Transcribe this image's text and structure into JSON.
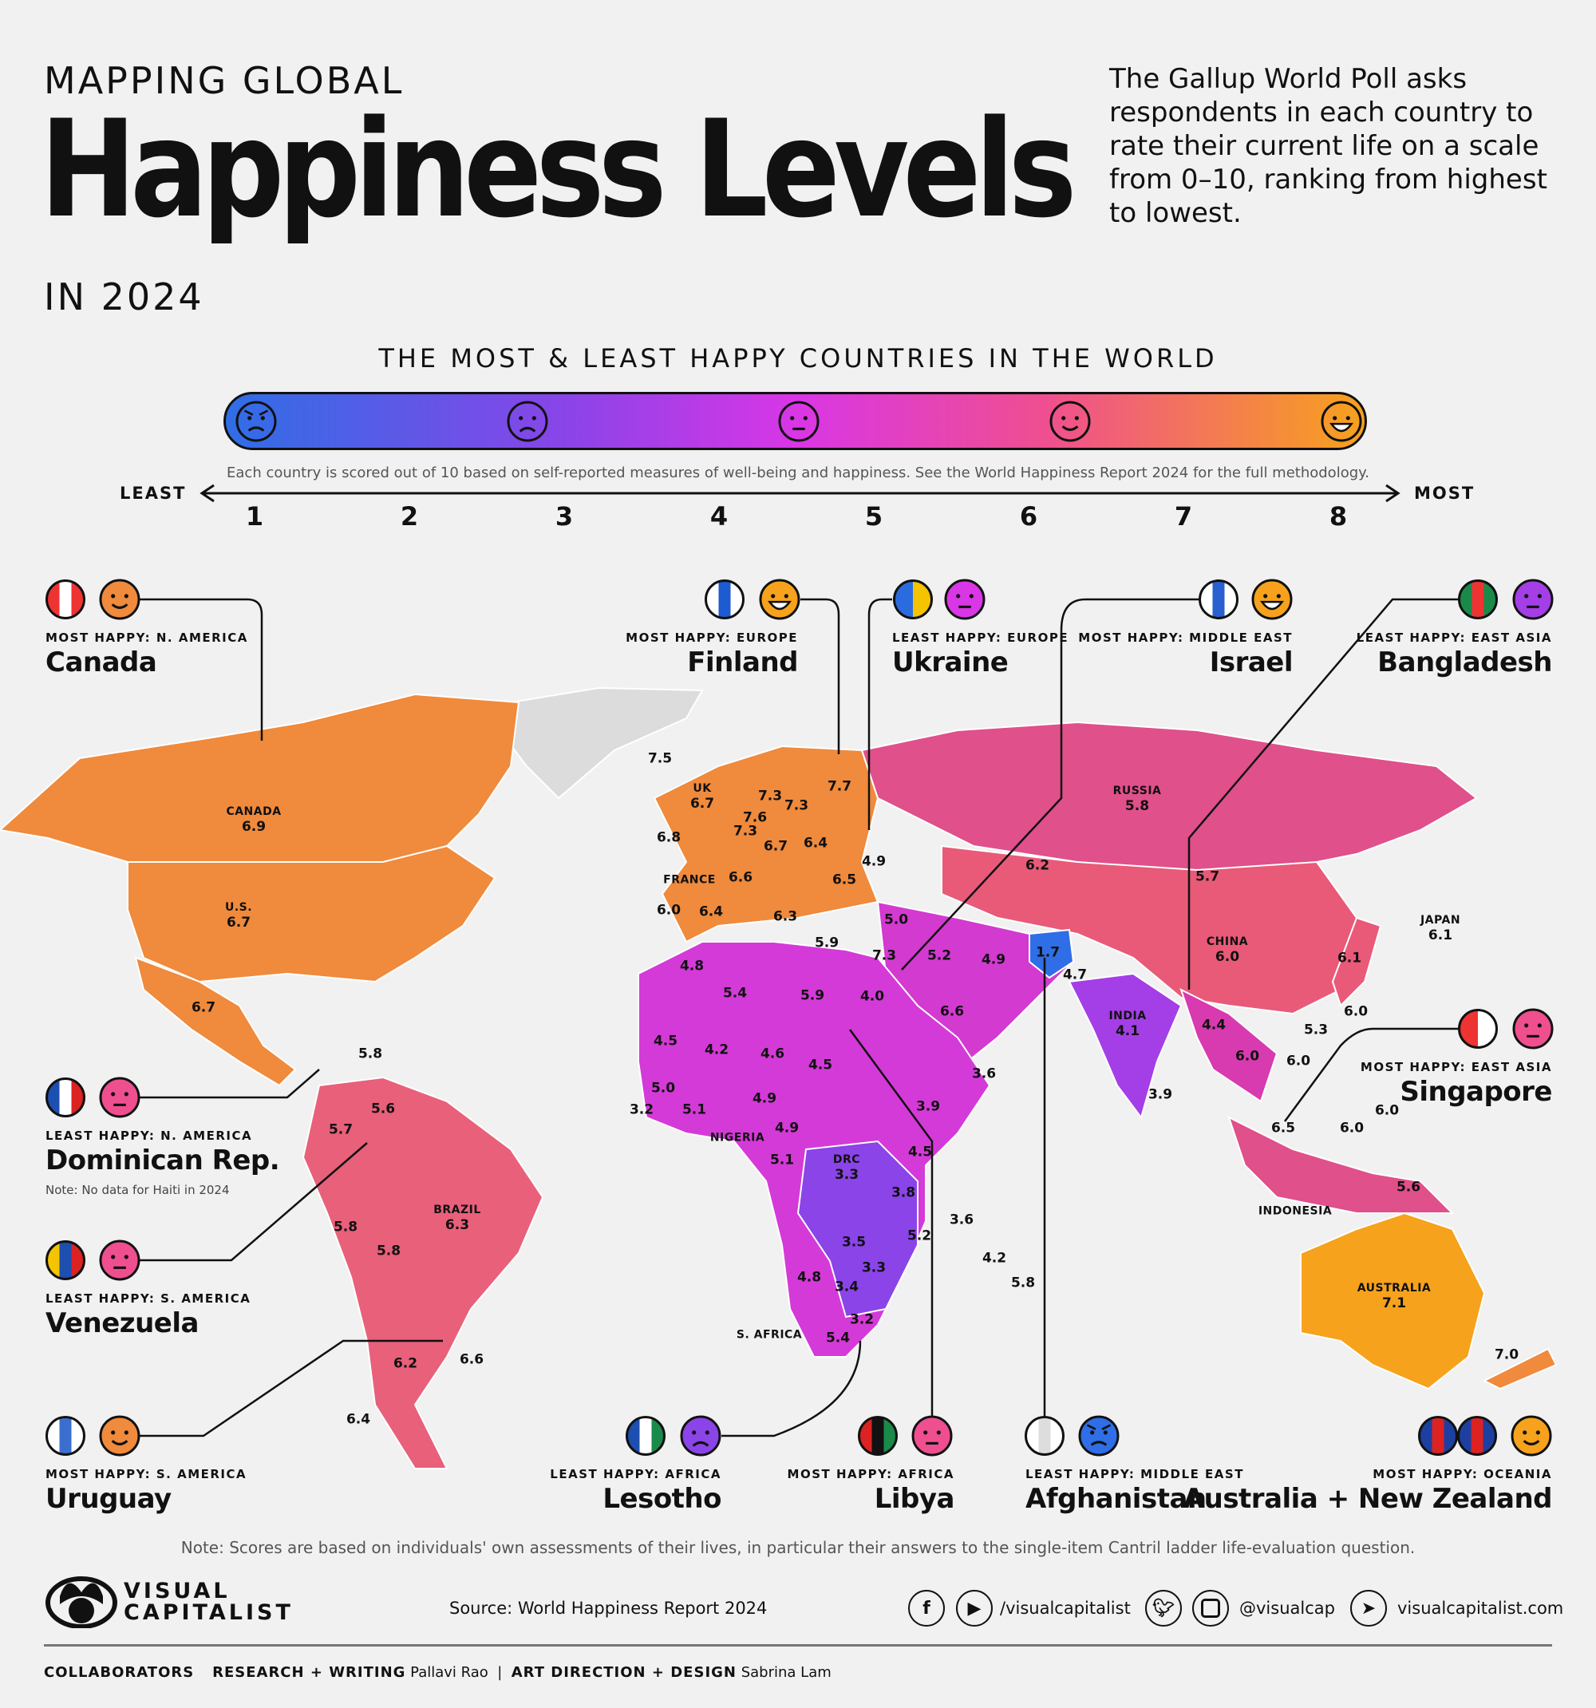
{
  "header": {
    "pretitle": "MAPPING GLOBAL",
    "title": "Happiness Levels",
    "year": "IN 2024",
    "description": "The Gallup World Poll asks respondents in each country to rate their current life on a scale from 0–10, ranking from highest to lowest."
  },
  "scale": {
    "subtitle": "THE MOST & LEAST HAPPY COUNTRIES IN THE WORLD",
    "methodology": "Each country is scored out of 10 based on self-reported measures of well-being and happiness. See the World Happiness Report 2024 for the full methodology.",
    "least_label": "LEAST",
    "most_label": "MOST",
    "ticks": [
      "1",
      "2",
      "3",
      "4",
      "5",
      "6",
      "7",
      "8"
    ],
    "gradient_colors": [
      "#2f6ee6",
      "#8a44e8",
      "#d936e6",
      "#ef4f8f",
      "#f7a21c"
    ],
    "faces": [
      "angry",
      "sad",
      "neutral",
      "smile",
      "grin"
    ]
  },
  "callouts": [
    {
      "label": "MOST HAPPY: N. AMERICA",
      "name": "Canada",
      "face": "smile",
      "face_color": "#f08a3c",
      "flag": [
        "#e33",
        "#fff",
        "#e33"
      ]
    },
    {
      "label": "MOST HAPPY: EUROPE",
      "name": "Finland",
      "face": "grin",
      "face_color": "#f7a21c",
      "flag": [
        "#fff",
        "#1d5bd1",
        "#fff"
      ]
    },
    {
      "label": "LEAST HAPPY: EUROPE",
      "name": "Ukraine",
      "face": "neutral",
      "face_color": "#d936e6",
      "flag": [
        "#2a6ce0",
        "#f5c400"
      ]
    },
    {
      "label": "MOST HAPPY: MIDDLE EAST",
      "name": "Israel",
      "face": "grin",
      "face_color": "#f7a21c",
      "flag": [
        "#fff",
        "#2a5fd0",
        "#fff"
      ]
    },
    {
      "label": "LEAST HAPPY: EAST ASIA",
      "name": "Bangladesh",
      "face": "neutral",
      "face_color": "#a43ee6",
      "flag": [
        "#1a8a4a",
        "#e33",
        "#1a8a4a"
      ]
    },
    {
      "label": "MOST HAPPY: EAST ASIA",
      "name": "Singapore",
      "face": "neutral",
      "face_color": "#ef4f8f",
      "flag": [
        "#e33",
        "#fff"
      ]
    },
    {
      "label": "LEAST HAPPY: N. AMERICA",
      "name": "Dominican Rep.",
      "face": "neutral",
      "face_color": "#ef4f8f",
      "flag": [
        "#1d4fb0",
        "#fff",
        "#d22"
      ],
      "note": "Note: No data for Haiti in 2024"
    },
    {
      "label": "LEAST HAPPY: S. AMERICA",
      "name": "Venezuela",
      "face": "neutral",
      "face_color": "#ef4f8f",
      "flag": [
        "#f5c400",
        "#1d4fb0",
        "#d22"
      ]
    },
    {
      "label": "MOST HAPPY: S. AMERICA",
      "name": "Uruguay",
      "face": "smile",
      "face_color": "#f08a3c",
      "flag": [
        "#fff",
        "#3a6fd0",
        "#fff"
      ]
    },
    {
      "label": "LEAST HAPPY: AFRICA",
      "name": "Lesotho",
      "face": "sad",
      "face_color": "#8a44e8",
      "flag": [
        "#1d4fb0",
        "#fff",
        "#1a8a4a"
      ]
    },
    {
      "label": "MOST HAPPY: AFRICA",
      "name": "Libya",
      "face": "neutral",
      "face_color": "#ef4f8f",
      "flag": [
        "#d22",
        "#111",
        "#1a8a4a"
      ]
    },
    {
      "label": "LEAST HAPPY: MIDDLE EAST",
      "name": "Afghanistan",
      "face": "angry",
      "face_color": "#2f6ee6",
      "flag": [
        "#fff",
        "#ddd",
        "#fff"
      ]
    },
    {
      "label": "MOST HAPPY: OCEANIA",
      "name": "Australia + New Zealand",
      "face": "smile",
      "face_color": "#f7a21c",
      "flag": [
        "#1d3fa0",
        "#d22",
        "#1d3fa0"
      ]
    }
  ],
  "map_labels": [
    {
      "name": "CANADA",
      "value": "6.9"
    },
    {
      "name": "U.S.",
      "value": "6.7"
    },
    {
      "value": "6.7"
    },
    {
      "value": "5.8"
    },
    {
      "value": "5.6"
    },
    {
      "value": "5.7"
    },
    {
      "name": "BRAZIL",
      "value": "6.3"
    },
    {
      "value": "5.8"
    },
    {
      "value": "5.8"
    },
    {
      "value": "6.2"
    },
    {
      "value": "6.6"
    },
    {
      "value": "6.4"
    },
    {
      "value": "7.5"
    },
    {
      "name": "UK",
      "value": "6.7"
    },
    {
      "value": "6.8"
    },
    {
      "value": "7.3"
    },
    {
      "value": "7.7"
    },
    {
      "value": "7.3"
    },
    {
      "value": "7.6"
    },
    {
      "value": "7.3"
    },
    {
      "value": "6.7"
    },
    {
      "value": "6.4"
    },
    {
      "name": "FRANCE"
    },
    {
      "value": "6.6"
    },
    {
      "value": "6.5"
    },
    {
      "value": "4.9"
    },
    {
      "value": "6.0"
    },
    {
      "value": "6.4"
    },
    {
      "value": "6.3"
    },
    {
      "value": "5.0"
    },
    {
      "value": "5.9"
    },
    {
      "value": "7.3"
    },
    {
      "value": "5.2"
    },
    {
      "value": "4.9"
    },
    {
      "value": "1.7"
    },
    {
      "value": "4.7"
    },
    {
      "value": "6.2"
    },
    {
      "name": "RUSSIA",
      "value": "5.8"
    },
    {
      "value": "5.7"
    },
    {
      "name": "CHINA",
      "value": "6.0"
    },
    {
      "name": "JAPAN",
      "value": "6.1"
    },
    {
      "value": "6.1"
    },
    {
      "value": "6.0"
    },
    {
      "value": "5.3"
    },
    {
      "value": "4.8"
    },
    {
      "value": "5.4"
    },
    {
      "value": "5.9"
    },
    {
      "value": "4.0"
    },
    {
      "value": "6.6"
    },
    {
      "name": "INDIA",
      "value": "4.1"
    },
    {
      "value": "4.4"
    },
    {
      "value": "6.0"
    },
    {
      "value": "6.0"
    },
    {
      "value": "3.6"
    },
    {
      "value": "3.9"
    },
    {
      "value": "4.5"
    },
    {
      "value": "4.2"
    },
    {
      "value": "4.6"
    },
    {
      "value": "4.5"
    },
    {
      "value": "3.9"
    },
    {
      "value": "6.0"
    },
    {
      "value": "6.5"
    },
    {
      "value": "6.0"
    },
    {
      "value": "5.0"
    },
    {
      "value": "3.2"
    },
    {
      "value": "5.1"
    },
    {
      "value": "4.9"
    },
    {
      "value": "4.9"
    },
    {
      "name": "NIGERIA"
    },
    {
      "name": "DRC",
      "value": "3.3"
    },
    {
      "value": "4.5"
    },
    {
      "value": "5.1"
    },
    {
      "value": "3.8"
    },
    {
      "value": "3.6"
    },
    {
      "value": "5.2"
    },
    {
      "value": "3.5"
    },
    {
      "value": "4.2"
    },
    {
      "value": "3.3"
    },
    {
      "value": "4.8"
    },
    {
      "value": "3.4"
    },
    {
      "value": "5.8"
    },
    {
      "value": "3.2"
    },
    {
      "name": "S. AFRICA"
    },
    {
      "value": "5.4"
    },
    {
      "name": "INDONESIA"
    },
    {
      "value": "5.6"
    },
    {
      "name": "AUSTRALIA",
      "value": "7.1"
    },
    {
      "value": "7.0"
    }
  ],
  "map_colors": {
    "north_america": "#f08a3c",
    "usa": "#f08a3c",
    "mexico": "#f08a3c",
    "greenland": "#dcdcdc",
    "south_america": "#e8607a",
    "europe": "#f08a3c",
    "africa": "#d43ad8",
    "russia": "#e0508a",
    "asia": "#e85a78",
    "middle_east": "#d33ad0",
    "india": "#a43ee6",
    "se_asia": "#d83ab0",
    "indonesia": "#e0508a",
    "japan": "#e85a78",
    "australia": "#f7a21c",
    "new_zealand": "#f08a3c",
    "afghanistan": "#2f6ee6",
    "central_africa": "#8a44e8"
  },
  "footer": {
    "note": "Note: Scores are based on individuals' own assessments of their lives, in particular their answers to the single-item Cantril ladder life-evaluation question.",
    "brand_line1": "VISUAL",
    "brand_line2": "CAPITALIST",
    "source": "Source: World Happiness Report 2024",
    "social1": "/visualcapitalist",
    "social2": "@visualcap",
    "website": "visualcapitalist.com",
    "icons": [
      "facebook-icon",
      "youtube-icon",
      "twitter-icon",
      "instagram-icon",
      "cursor-icon"
    ],
    "collaborators_label": "COLLABORATORS",
    "research_label": "RESEARCH + WRITING",
    "research_name": "Pallavi Rao",
    "design_label": "ART DIRECTION + DESIGN",
    "design_name": "Sabrina Lam"
  }
}
